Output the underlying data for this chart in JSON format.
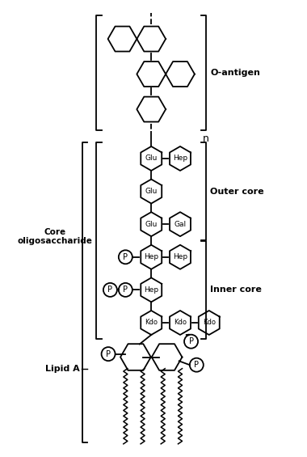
{
  "bg_color": "#ffffff",
  "line_color": "#000000",
  "labels": {
    "o_antigen": "O-antigen",
    "outer_core": "Outer core",
    "inner_core": "Inner core",
    "core_oligo": "Core\noligosaccharide",
    "lipid_a": "Lipid A",
    "n_label": "n"
  },
  "hsize_sugar": 0.155,
  "hsize_plain": 0.185,
  "hsize_lipid": 0.195,
  "circle_r": 0.088,
  "lw": 1.3
}
